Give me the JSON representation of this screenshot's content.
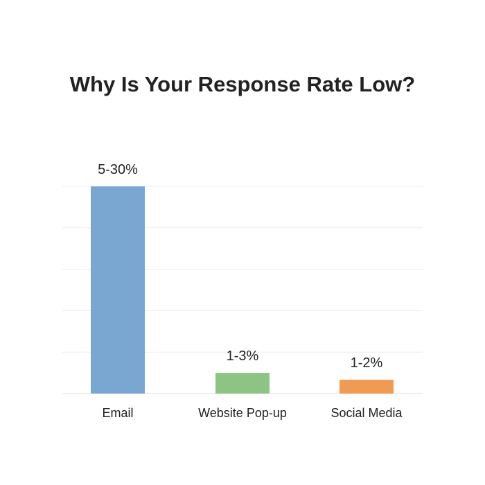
{
  "chart_data": {
    "type": "bar",
    "title": "Why Is Your Response Rate Low?",
    "xlabel": "",
    "ylabel": "",
    "categories": [
      "Email",
      "Website Pop-up",
      "Social Media"
    ],
    "values": [
      30,
      3,
      2
    ],
    "data_labels": [
      "5-30%",
      "1-3%",
      "1-2%"
    ],
    "colors": [
      "#7aa6d2",
      "#8dc483",
      "#f09b51"
    ],
    "grid": true,
    "legend": "none"
  }
}
